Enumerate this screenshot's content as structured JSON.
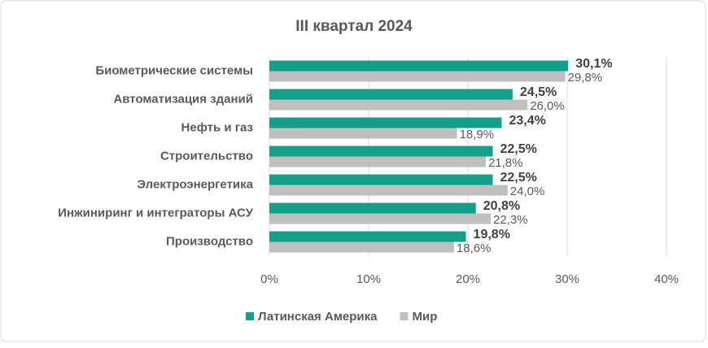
{
  "chart_data": {
    "type": "bar",
    "orientation": "horizontal",
    "title": "III квартал 2024",
    "categories": [
      "Биометрические системы",
      "Автоматизация зданий",
      "Нефть и газ",
      "Строительство",
      "Электроэнергетика",
      "Инжиниринг и интеграторы АСУ",
      "Производство"
    ],
    "series": [
      {
        "name": "Латинская Америка",
        "color": "#12a08a",
        "values": [
          30.1,
          24.5,
          23.4,
          22.5,
          22.5,
          20.8,
          19.8
        ],
        "value_labels": [
          "30,1%",
          "24,5%",
          "23,4%",
          "22,5%",
          "22,5%",
          "20,8%",
          "19,8%"
        ]
      },
      {
        "name": "Мир",
        "color": "#bfbfbf",
        "values": [
          29.8,
          26.0,
          18.9,
          21.8,
          24.0,
          22.3,
          18.6
        ],
        "value_labels": [
          "29,8%",
          "26,0%",
          "18,9%",
          "21,8%",
          "24,0%",
          "22,3%",
          "18,6%"
        ]
      }
    ],
    "xlim": [
      0,
      40
    ],
    "xticks": [
      {
        "value": 0,
        "label": "0%"
      },
      {
        "value": 10,
        "label": "10%"
      },
      {
        "value": 20,
        "label": "20%"
      },
      {
        "value": 30,
        "label": "30%"
      },
      {
        "value": 40,
        "label": "40%"
      }
    ],
    "grid": true,
    "legend": "bottom"
  }
}
